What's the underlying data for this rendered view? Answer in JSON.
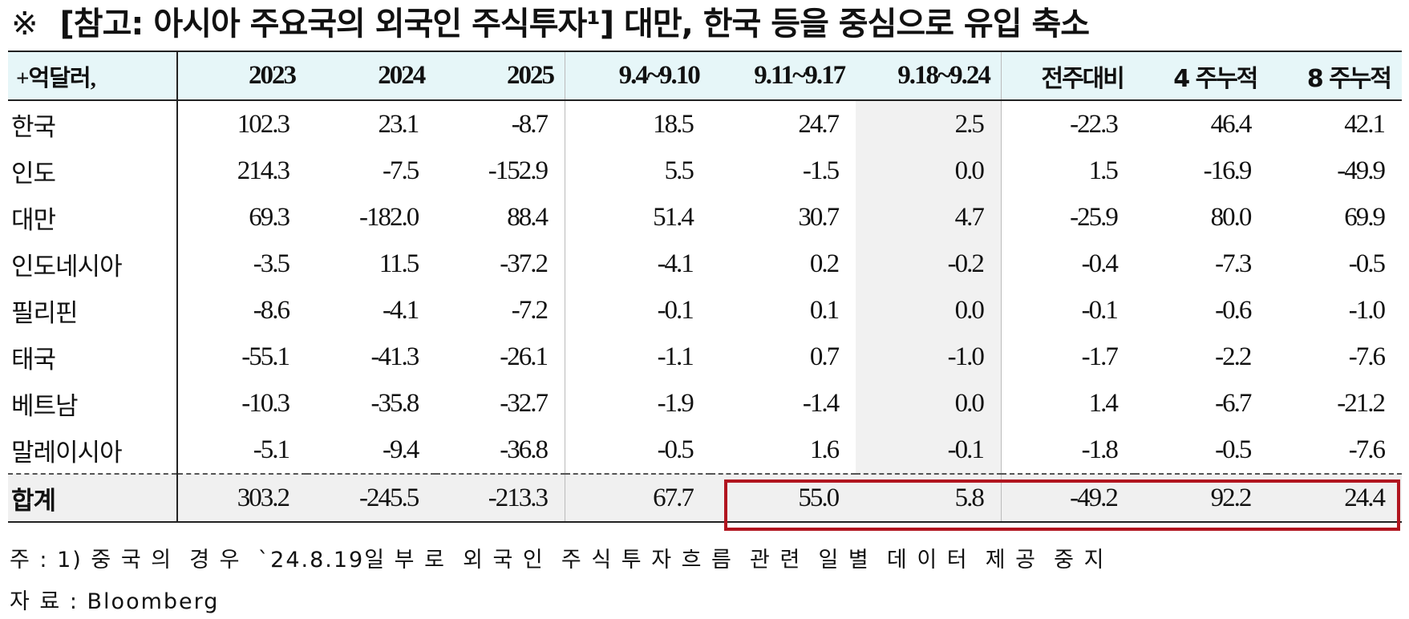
{
  "title": {
    "mark": "※",
    "text": "[참고: 아시아 주요국의 외국인 주식투자¹] 대만, 한국 등을 중심으로 유입 축소"
  },
  "table": {
    "headers": [
      "+억달러,",
      "2023",
      "2024",
      "2025",
      "9.4~9.10",
      "9.11~9.17",
      "9.18~9.24",
      "전주대비",
      "4 주누적",
      "8 주누적"
    ],
    "rows": [
      {
        "name": "한국",
        "values": [
          "102.3",
          "23.1",
          "-8.7",
          "18.5",
          "24.7",
          "2.5",
          "-22.3",
          "46.4",
          "42.1"
        ]
      },
      {
        "name": "인도",
        "values": [
          "214.3",
          "-7.5",
          "-152.9",
          "5.5",
          "-1.5",
          "0.0",
          "1.5",
          "-16.9",
          "-49.9"
        ]
      },
      {
        "name": "대만",
        "values": [
          "69.3",
          "-182.0",
          "88.4",
          "51.4",
          "30.7",
          "4.7",
          "-25.9",
          "80.0",
          "69.9"
        ]
      },
      {
        "name": "인도네시아",
        "values": [
          "-3.5",
          "11.5",
          "-37.2",
          "-4.1",
          "0.2",
          "-0.2",
          "-0.4",
          "-7.3",
          "-0.5"
        ]
      },
      {
        "name": "필리핀",
        "values": [
          "-8.6",
          "-4.1",
          "-7.2",
          "-0.1",
          "0.1",
          "0.0",
          "-0.1",
          "-0.6",
          "-1.0"
        ]
      },
      {
        "name": "태국",
        "values": [
          "-55.1",
          "-41.3",
          "-26.1",
          "-1.1",
          "0.7",
          "-1.0",
          "-1.7",
          "-2.2",
          "-7.6"
        ]
      },
      {
        "name": "베트남",
        "values": [
          "-10.3",
          "-35.8",
          "-32.7",
          "-1.9",
          "-1.4",
          "0.0",
          "1.4",
          "-6.7",
          "-21.2"
        ]
      },
      {
        "name": "말레이시아",
        "values": [
          "-5.1",
          "-9.4",
          "-36.8",
          "-0.5",
          "1.6",
          "-0.1",
          "-1.8",
          "-0.5",
          "-7.6"
        ]
      }
    ],
    "total": {
      "name": "합계",
      "values": [
        "303.2",
        "-245.5",
        "-213.3",
        "67.7",
        "55.0",
        "5.8",
        "-49.2",
        "92.2",
        "24.4"
      ]
    }
  },
  "notes": {
    "note1": "주 : 1) 중 국 의  경 우  `24.8.19일 부 로  외 국 인  주 식 투 자 흐 름  관 련  일 별  데 이 터  제 공  중 지",
    "source": "자 료 : Bloomberg"
  },
  "colors": {
    "header_bg": "#e6f6f8",
    "highlight_bg": "#f1f1f1",
    "total_box": "#b1151f"
  }
}
